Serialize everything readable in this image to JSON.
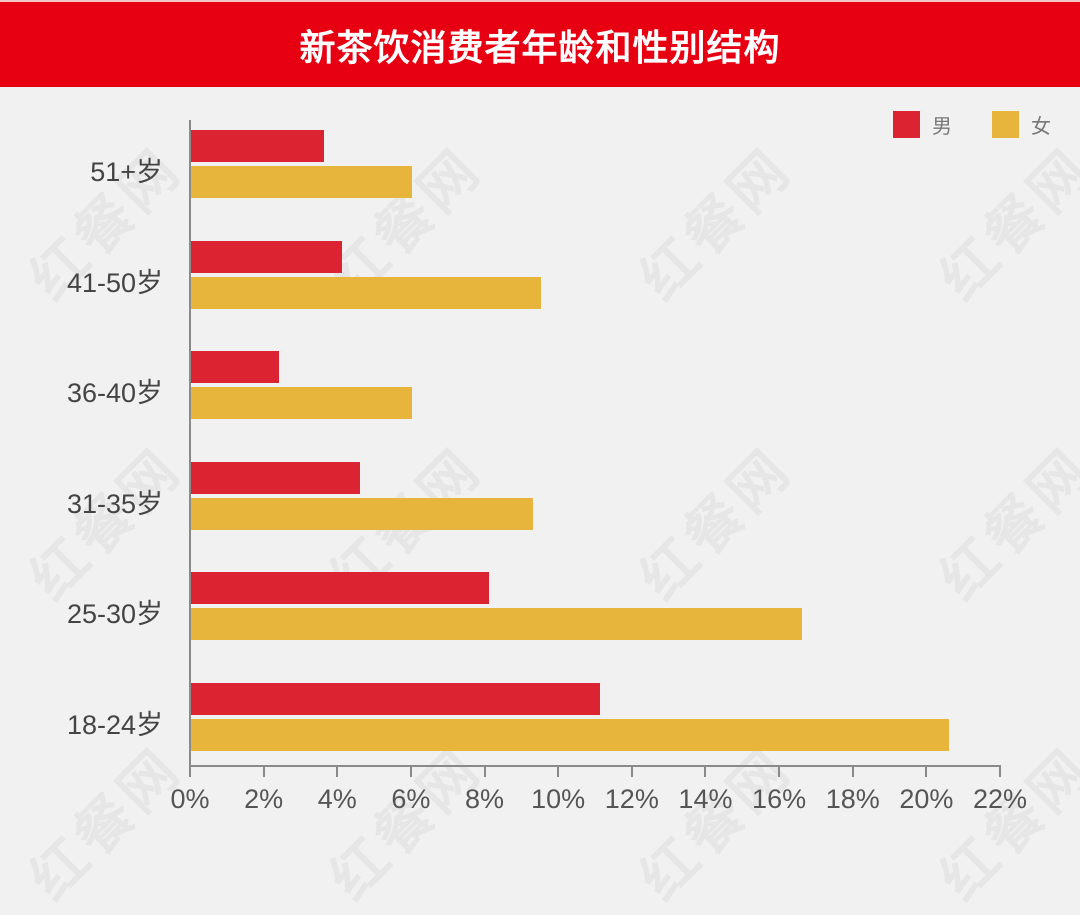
{
  "header": {
    "title": "新茶饮消费者年龄和性别结构"
  },
  "watermark": "红餐网",
  "legend": [
    {
      "label": "男",
      "color": "#db2332"
    },
    {
      "label": "女",
      "color": "#e7b43c"
    }
  ],
  "x_ticks": [
    "0%",
    "2%",
    "4%",
    "6%",
    "8%",
    "10%",
    "12%",
    "14%",
    "16%",
    "18%",
    "20%",
    "22%"
  ],
  "chart_data": {
    "type": "bar",
    "orientation": "horizontal",
    "title": "新茶饮消费者年龄和性别结构",
    "categories": [
      "51+岁",
      "41-50岁",
      "36-40岁",
      "31-35岁",
      "25-30岁",
      "18-24岁"
    ],
    "series": [
      {
        "name": "男",
        "color": "#db2332",
        "values": [
          3.6,
          4.1,
          2.4,
          4.6,
          8.1,
          11.1
        ]
      },
      {
        "name": "女",
        "color": "#e7b43c",
        "values": [
          6.0,
          9.5,
          6.0,
          9.3,
          16.6,
          20.6
        ]
      }
    ],
    "xlabel": "",
    "ylabel": "",
    "xlim": [
      0,
      22
    ],
    "x_tick_labels": [
      "0%",
      "2%",
      "4%",
      "6%",
      "8%",
      "10%",
      "12%",
      "14%",
      "16%",
      "18%",
      "20%",
      "22%"
    ],
    "grid": false,
    "legend_position": "top-right"
  }
}
